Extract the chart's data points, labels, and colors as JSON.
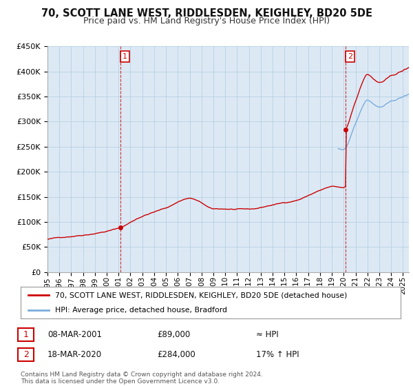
{
  "title": "70, SCOTT LANE WEST, RIDDLESDEN, KEIGHLEY, BD20 5DE",
  "subtitle": "Price paid vs. HM Land Registry's House Price Index (HPI)",
  "legend_line1": "70, SCOTT LANE WEST, RIDDLESDEN, KEIGHLEY, BD20 5DE (detached house)",
  "legend_line2": "HPI: Average price, detached house, Bradford",
  "footnote": "Contains HM Land Registry data © Crown copyright and database right 2024.\nThis data is licensed under the Open Government Licence v3.0.",
  "sale1_label": "1",
  "sale1_date": "08-MAR-2001",
  "sale1_price": "£89,000",
  "sale1_hpi": "≈ HPI",
  "sale2_label": "2",
  "sale2_date": "18-MAR-2020",
  "sale2_price": "£284,000",
  "sale2_hpi": "17% ↑ HPI",
  "sale1_year": 2001.18,
  "sale1_value": 89000,
  "sale2_year": 2020.18,
  "sale2_value": 284000,
  "ylim": [
    0,
    450000
  ],
  "xlim": [
    1995.0,
    2025.5
  ],
  "yticks": [
    0,
    50000,
    100000,
    150000,
    200000,
    250000,
    300000,
    350000,
    400000,
    450000
  ],
  "ytick_labels": [
    "£0",
    "£50K",
    "£100K",
    "£150K",
    "£200K",
    "£250K",
    "£300K",
    "£350K",
    "£400K",
    "£450K"
  ],
  "xticks": [
    1995,
    1996,
    1997,
    1998,
    1999,
    2000,
    2001,
    2002,
    2003,
    2004,
    2005,
    2006,
    2007,
    2008,
    2009,
    2010,
    2011,
    2012,
    2013,
    2014,
    2015,
    2016,
    2017,
    2018,
    2019,
    2020,
    2021,
    2022,
    2023,
    2024,
    2025
  ],
  "property_color": "#cc0000",
  "hpi_color": "#7aabdb",
  "vline_color": "#cc0000",
  "background_color": "#ffffff",
  "plot_bg_color": "#dce9f5",
  "grid_color": "#b8cfe0",
  "title_fontsize": 10.5,
  "subtitle_fontsize": 9,
  "hpi_index_base_value": 89000,
  "hpi_index_base_year": 2001.18,
  "hpi2_base_value": 284000,
  "hpi2_base_year": 2020.18
}
